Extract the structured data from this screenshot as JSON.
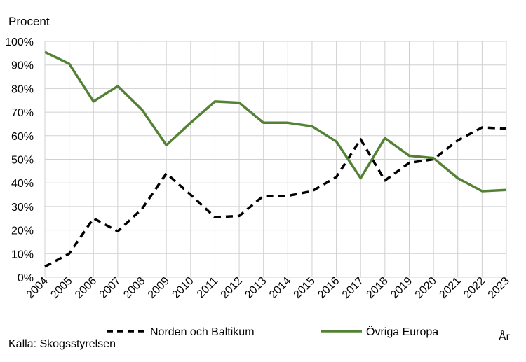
{
  "chart_data": {
    "type": "line",
    "title": "",
    "ylabel": "Procent",
    "xlabel": "År",
    "ylim": [
      0,
      100
    ],
    "yticks": [
      "0%",
      "10%",
      "20%",
      "30%",
      "40%",
      "50%",
      "60%",
      "70%",
      "80%",
      "90%",
      "100%"
    ],
    "categories": [
      "2004",
      "2005",
      "2006",
      "2007",
      "2008",
      "2009",
      "2010",
      "2011",
      "2012",
      "2013",
      "2014",
      "2015",
      "2016",
      "2017",
      "2018",
      "2019",
      "2020",
      "2021",
      "2022",
      "2023"
    ],
    "grid": true,
    "legend_position": "bottom",
    "series": [
      {
        "name": "Norden och Baltikum",
        "style": "dashed",
        "color": "#000000",
        "values": [
          4.5,
          10,
          25,
          19.5,
          29,
          44,
          35,
          25.5,
          26,
          34.5,
          34.5,
          36.5,
          42.5,
          58.5,
          41,
          48.5,
          50,
          58,
          63.5,
          63
        ]
      },
      {
        "name": "Övriga Europa",
        "style": "solid",
        "color": "#548235",
        "values": [
          95.5,
          90.5,
          74.5,
          81,
          71,
          56,
          65.5,
          74.5,
          74,
          65.5,
          65.5,
          64,
          57.5,
          42,
          59,
          51.5,
          50.5,
          42,
          36.5,
          37
        ]
      }
    ],
    "source": "Källa: Skogsstyrelsen"
  }
}
